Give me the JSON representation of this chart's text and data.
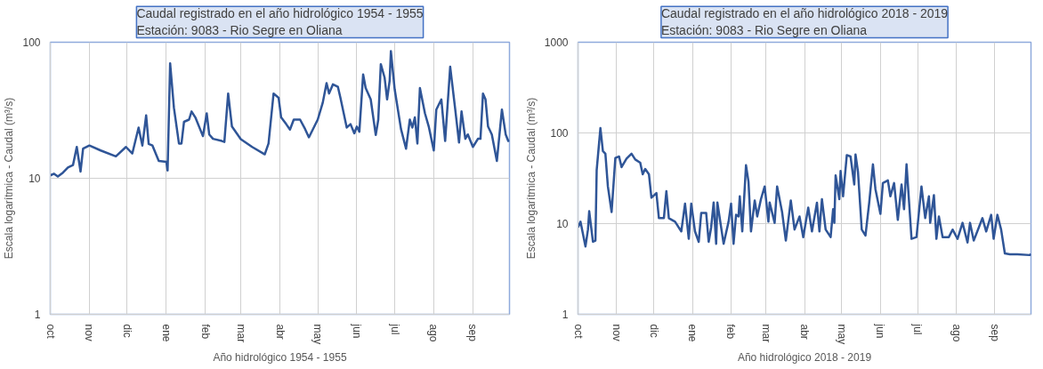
{
  "chart_data": [
    {
      "type": "line",
      "title": "Caudal registrado en el año hidrológico 1954 - 1955",
      "subtitle": "Estación: 9083 - Rio Segre en Oliana",
      "xlabel": "Año hidrológico 1954 - 1955",
      "ylabel": "Escala logarítmica - Caudal (m³/s)",
      "log": true,
      "grid": true,
      "marker": "none",
      "line_style": "solid",
      "xlim": [
        "1954-10-01",
        "1955-09-30"
      ],
      "xticks": [
        {
          "value": "1954-10-01",
          "label": "oct"
        },
        {
          "value": "1954-11-01",
          "label": "nov"
        },
        {
          "value": "1954-12-01",
          "label": "dic"
        },
        {
          "value": "1955-01-01",
          "label": "ene"
        },
        {
          "value": "1955-02-01",
          "label": "feb"
        },
        {
          "value": "1955-03-01",
          "label": "mar"
        },
        {
          "value": "1955-04-01",
          "label": "abr"
        },
        {
          "value": "1955-05-01",
          "label": "may"
        },
        {
          "value": "1955-06-01",
          "label": "jun"
        },
        {
          "value": "1955-07-01",
          "label": "jul"
        },
        {
          "value": "1955-08-01",
          "label": "ago"
        },
        {
          "value": "1955-09-01",
          "label": "sep"
        }
      ],
      "ylim": [
        1,
        100
      ],
      "yticks": [
        1,
        10,
        100
      ],
      "series": [
        {
          "color": "#2f5597",
          "x": [
            "1954-10-01",
            "1954-10-04",
            "1954-10-07",
            "1954-10-11",
            "1954-10-15",
            "1954-10-19",
            "1954-10-22",
            "1954-10-25",
            "1954-10-27",
            "1954-11-01",
            "1954-11-10",
            "1954-11-22",
            "1954-11-30",
            "1954-12-05",
            "1954-12-10",
            "1954-12-13",
            "1954-12-16",
            "1954-12-18",
            "1954-12-21",
            "1954-12-26",
            "1955-01-01",
            "1955-01-02",
            "1955-01-04",
            "1955-01-07",
            "1955-01-11",
            "1955-01-13",
            "1955-01-15",
            "1955-01-19",
            "1955-01-21",
            "1955-01-24",
            "1955-01-30",
            "1955-02-02",
            "1955-02-04",
            "1955-02-07",
            "1955-02-14",
            "1955-02-16",
            "1955-02-19",
            "1955-02-22",
            "1955-03-01",
            "1955-03-10",
            "1955-03-20",
            "1955-03-23",
            "1955-03-27",
            "1955-03-31",
            "1955-04-02",
            "1955-04-06",
            "1955-04-09",
            "1955-04-12",
            "1955-04-17",
            "1955-04-21",
            "1955-04-24",
            "1955-05-01",
            "1955-05-05",
            "1955-05-08",
            "1955-05-10",
            "1955-05-13",
            "1955-05-17",
            "1955-05-19",
            "1955-05-24",
            "1955-05-27",
            "1955-05-30",
            "1955-06-01",
            "1955-06-03",
            "1955-06-06",
            "1955-06-08",
            "1955-06-12",
            "1955-06-16",
            "1955-06-18",
            "1955-06-20",
            "1955-06-23",
            "1955-06-25",
            "1955-06-27",
            "1955-06-28",
            "1955-07-01",
            "1955-07-06",
            "1955-07-10",
            "1955-07-13",
            "1955-07-15",
            "1955-07-17",
            "1955-07-19",
            "1955-07-21",
            "1955-07-25",
            "1955-07-28",
            "1955-08-01",
            "1955-08-03",
            "1955-08-07",
            "1955-08-10",
            "1955-08-14",
            "1955-08-18",
            "1955-08-21",
            "1955-08-23",
            "1955-08-26",
            "1955-08-28",
            "1955-09-01",
            "1955-09-05",
            "1955-09-07",
            "1955-09-09",
            "1955-09-11",
            "1955-09-13",
            "1955-09-16",
            "1955-09-20",
            "1955-09-24",
            "1955-09-27",
            "1955-09-29",
            "1955-09-30"
          ],
          "values": [
            10.5,
            10.8,
            10.3,
            11,
            12,
            12.5,
            17,
            11.2,
            16.5,
            17.4,
            16,
            14.5,
            17,
            15.2,
            23.6,
            17.4,
            29,
            17.9,
            17.4,
            13.4,
            13.2,
            11.4,
            70,
            33,
            18,
            18,
            26,
            27,
            31,
            28,
            20.4,
            30,
            21,
            19.5,
            18.8,
            18.5,
            42,
            24,
            19.4,
            17,
            15,
            18,
            42,
            39,
            28,
            25,
            22.8,
            27,
            27,
            23,
            20,
            27,
            36,
            50,
            42,
            49,
            47,
            39,
            23.6,
            25,
            21.4,
            24,
            22,
            58,
            46,
            38,
            20.8,
            27,
            69,
            55,
            38,
            52,
            86,
            45,
            23,
            16.5,
            27,
            23.6,
            28,
            18,
            46,
            30,
            24,
            16,
            32,
            38,
            18.8,
            66,
            32,
            18.3,
            31,
            19.5,
            21,
            17,
            19.5,
            19.5,
            42,
            38,
            24,
            21,
            13.4,
            32,
            21,
            18.8,
            19
          ]
        }
      ]
    },
    {
      "type": "line",
      "title": "Caudal registrado en el año hidrológico 2018 - 2019",
      "subtitle": "Estación: 9083 - Rio Segre en Oliana",
      "xlabel": "Año hidrológico 2018 - 2019",
      "ylabel": "Escala logarítmica - Caudal (m³/s)",
      "log": true,
      "grid": true,
      "marker": "none",
      "line_style": "solid",
      "xlim": [
        "2018-10-01",
        "2019-09-30"
      ],
      "xticks": [
        {
          "value": "2018-10-01",
          "label": "oct"
        },
        {
          "value": "2018-11-01",
          "label": "nov"
        },
        {
          "value": "2018-12-01",
          "label": "dic"
        },
        {
          "value": "2019-01-01",
          "label": "ene"
        },
        {
          "value": "2019-02-01",
          "label": "feb"
        },
        {
          "value": "2019-03-01",
          "label": "mar"
        },
        {
          "value": "2019-04-01",
          "label": "abr"
        },
        {
          "value": "2019-05-01",
          "label": "may"
        },
        {
          "value": "2019-06-01",
          "label": "jun"
        },
        {
          "value": "2019-07-01",
          "label": "jul"
        },
        {
          "value": "2019-08-01",
          "label": "ago"
        },
        {
          "value": "2019-09-01",
          "label": "sep"
        }
      ],
      "ylim": [
        1,
        1000
      ],
      "yticks": [
        1,
        10,
        100,
        1000
      ],
      "series": [
        {
          "color": "#2f5597",
          "x": [
            "2018-10-01",
            "2018-10-03",
            "2018-10-07",
            "2018-10-09",
            "2018-10-10",
            "2018-10-13",
            "2018-10-15",
            "2018-10-16",
            "2018-10-19",
            "2018-10-21",
            "2018-10-23",
            "2018-10-25",
            "2018-10-28",
            "2018-10-31",
            "2018-11-03",
            "2018-11-05",
            "2018-11-09",
            "2018-11-13",
            "2018-11-16",
            "2018-11-20",
            "2018-11-22",
            "2018-11-24",
            "2018-11-27",
            "2018-11-29",
            "2018-12-03",
            "2018-12-05",
            "2018-12-09",
            "2018-12-11",
            "2018-12-13",
            "2018-12-18",
            "2018-12-23",
            "2018-12-26",
            "2018-12-29",
            "2018-12-31",
            "2019-01-03",
            "2019-01-06",
            "2019-01-08",
            "2019-01-12",
            "2019-01-14",
            "2019-01-16",
            "2019-01-18",
            "2019-01-20",
            "2019-01-21",
            "2019-01-26",
            "2019-01-30",
            "2019-02-01",
            "2019-02-03",
            "2019-02-05",
            "2019-02-07",
            "2019-02-08",
            "2019-02-10",
            "2019-02-13",
            "2019-02-15",
            "2019-02-17",
            "2019-02-20",
            "2019-02-22",
            "2019-02-25",
            "2019-02-28",
            "2019-03-03",
            "2019-03-04",
            "2019-03-08",
            "2019-03-10",
            "2019-03-14",
            "2019-03-17",
            "2019-03-21",
            "2019-03-24",
            "2019-03-28",
            "2019-03-31",
            "2019-04-04",
            "2019-04-07",
            "2019-04-11",
            "2019-04-13",
            "2019-04-15",
            "2019-04-18",
            "2019-04-22",
            "2019-04-24",
            "2019-04-25",
            "2019-04-26",
            "2019-04-29",
            "2019-04-30",
            "2019-05-02",
            "2019-05-05",
            "2019-05-08",
            "2019-05-11",
            "2019-05-12",
            "2019-05-14",
            "2019-05-17",
            "2019-05-20",
            "2019-05-23",
            "2019-05-26",
            "2019-05-28",
            "2019-06-01",
            "2019-06-03",
            "2019-06-07",
            "2019-06-09",
            "2019-06-12",
            "2019-06-15",
            "2019-06-18",
            "2019-06-20",
            "2019-06-22",
            "2019-06-25",
            "2019-06-26",
            "2019-06-30",
            "2019-07-04",
            "2019-07-07",
            "2019-07-10",
            "2019-07-11",
            "2019-07-14",
            "2019-07-16",
            "2019-07-18",
            "2019-07-21",
            "2019-07-26",
            "2019-07-29",
            "2019-08-02",
            "2019-08-06",
            "2019-08-10",
            "2019-08-12",
            "2019-08-15",
            "2019-08-22",
            "2019-08-25",
            "2019-08-29",
            "2019-08-31",
            "2019-09-03",
            "2019-09-06",
            "2019-09-09",
            "2019-09-13",
            "2019-09-19",
            "2019-09-29",
            "2019-09-30"
          ],
          "values": [
            9.1,
            10.5,
            5.6,
            8.6,
            13.7,
            6.3,
            6.5,
            38.8,
            113,
            63,
            59,
            25.7,
            13.4,
            53,
            55,
            42,
            52,
            59,
            51,
            47,
            35,
            40,
            35,
            19.3,
            21.7,
            11.5,
            11.5,
            22.8,
            11.5,
            10.5,
            8.2,
            16.6,
            6.8,
            16.6,
            8.2,
            6.3,
            13.1,
            13.1,
            6.3,
            9.1,
            17.1,
            6,
            17.1,
            6,
            10.5,
            16.6,
            6,
            12.5,
            12,
            20,
            8.2,
            44,
            29,
            8.2,
            18,
            12,
            18.6,
            25.7,
            10.5,
            17.1,
            10.2,
            25.7,
            13.4,
            6.5,
            18,
            8.6,
            12,
            7.1,
            15,
            8.2,
            17,
            8.2,
            18.6,
            8.6,
            7.1,
            14.4,
            10.2,
            34,
            18.6,
            38,
            20,
            57,
            55,
            27,
            58,
            37,
            8.6,
            7.4,
            17,
            45,
            24,
            12.8,
            28,
            30,
            20,
            28,
            11,
            27,
            14.4,
            45,
            11,
            6.8,
            7.1,
            25.7,
            11.5,
            20,
            10.2,
            20.6,
            6.8,
            12,
            7.1,
            7.1,
            8.6,
            6.8,
            10.2,
            6.2,
            10.2,
            6.5,
            11.5,
            8.2,
            12.5,
            6.8,
            12.5,
            8.6,
            4.7,
            4.6,
            4.6,
            4.5,
            4.6
          ]
        }
      ]
    }
  ]
}
